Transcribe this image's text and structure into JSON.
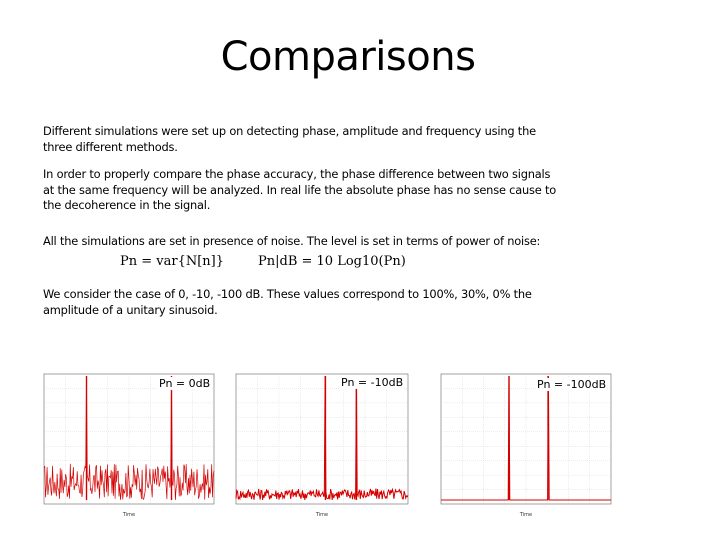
{
  "title": "Comparisons",
  "paragraphs": {
    "p1": [
      "Different simulations were set up on detecting phase, amplitude and frequency using the",
      "three different methods."
    ],
    "p2": [
      "In order to properly compare the phase accuracy, the phase difference between two signals",
      "at the same frequency will be analyzed. In real life the absolute phase has no sense cause to",
      "the decoherence in the signal."
    ],
    "p3": [
      "All the simulations are set in presence of noise. The level is set in terms of power of noise:"
    ],
    "p4": [
      "We consider the case of 0, -10, -100 dB. These values correspond to 100%, 30%, 0% the",
      "amplitude of a unitary sinusoid."
    ]
  },
  "formulas": {
    "f1": "Pn = var{N[n]}",
    "f2": "Pn|dB = 10 Log10(Pn)"
  },
  "plots": [
    {
      "label": "Pn = 0dB",
      "xlabel": "Time",
      "noise_power_db": 0,
      "peak_freqs": [
        -0.25,
        0.25
      ]
    },
    {
      "label": "Pn = -10dB",
      "xlabel": "Time",
      "noise_power_db": -10,
      "peak_freqs": [
        0.02,
        0.2
      ]
    },
    {
      "label": "Pn = -100dB",
      "xlabel": "Time",
      "noise_power_db": -100,
      "peak_freqs": [
        -0.1,
        0.13
      ]
    }
  ],
  "colors": {
    "trace": "#d40000",
    "text": "#000000",
    "background": "#ffffff"
  }
}
